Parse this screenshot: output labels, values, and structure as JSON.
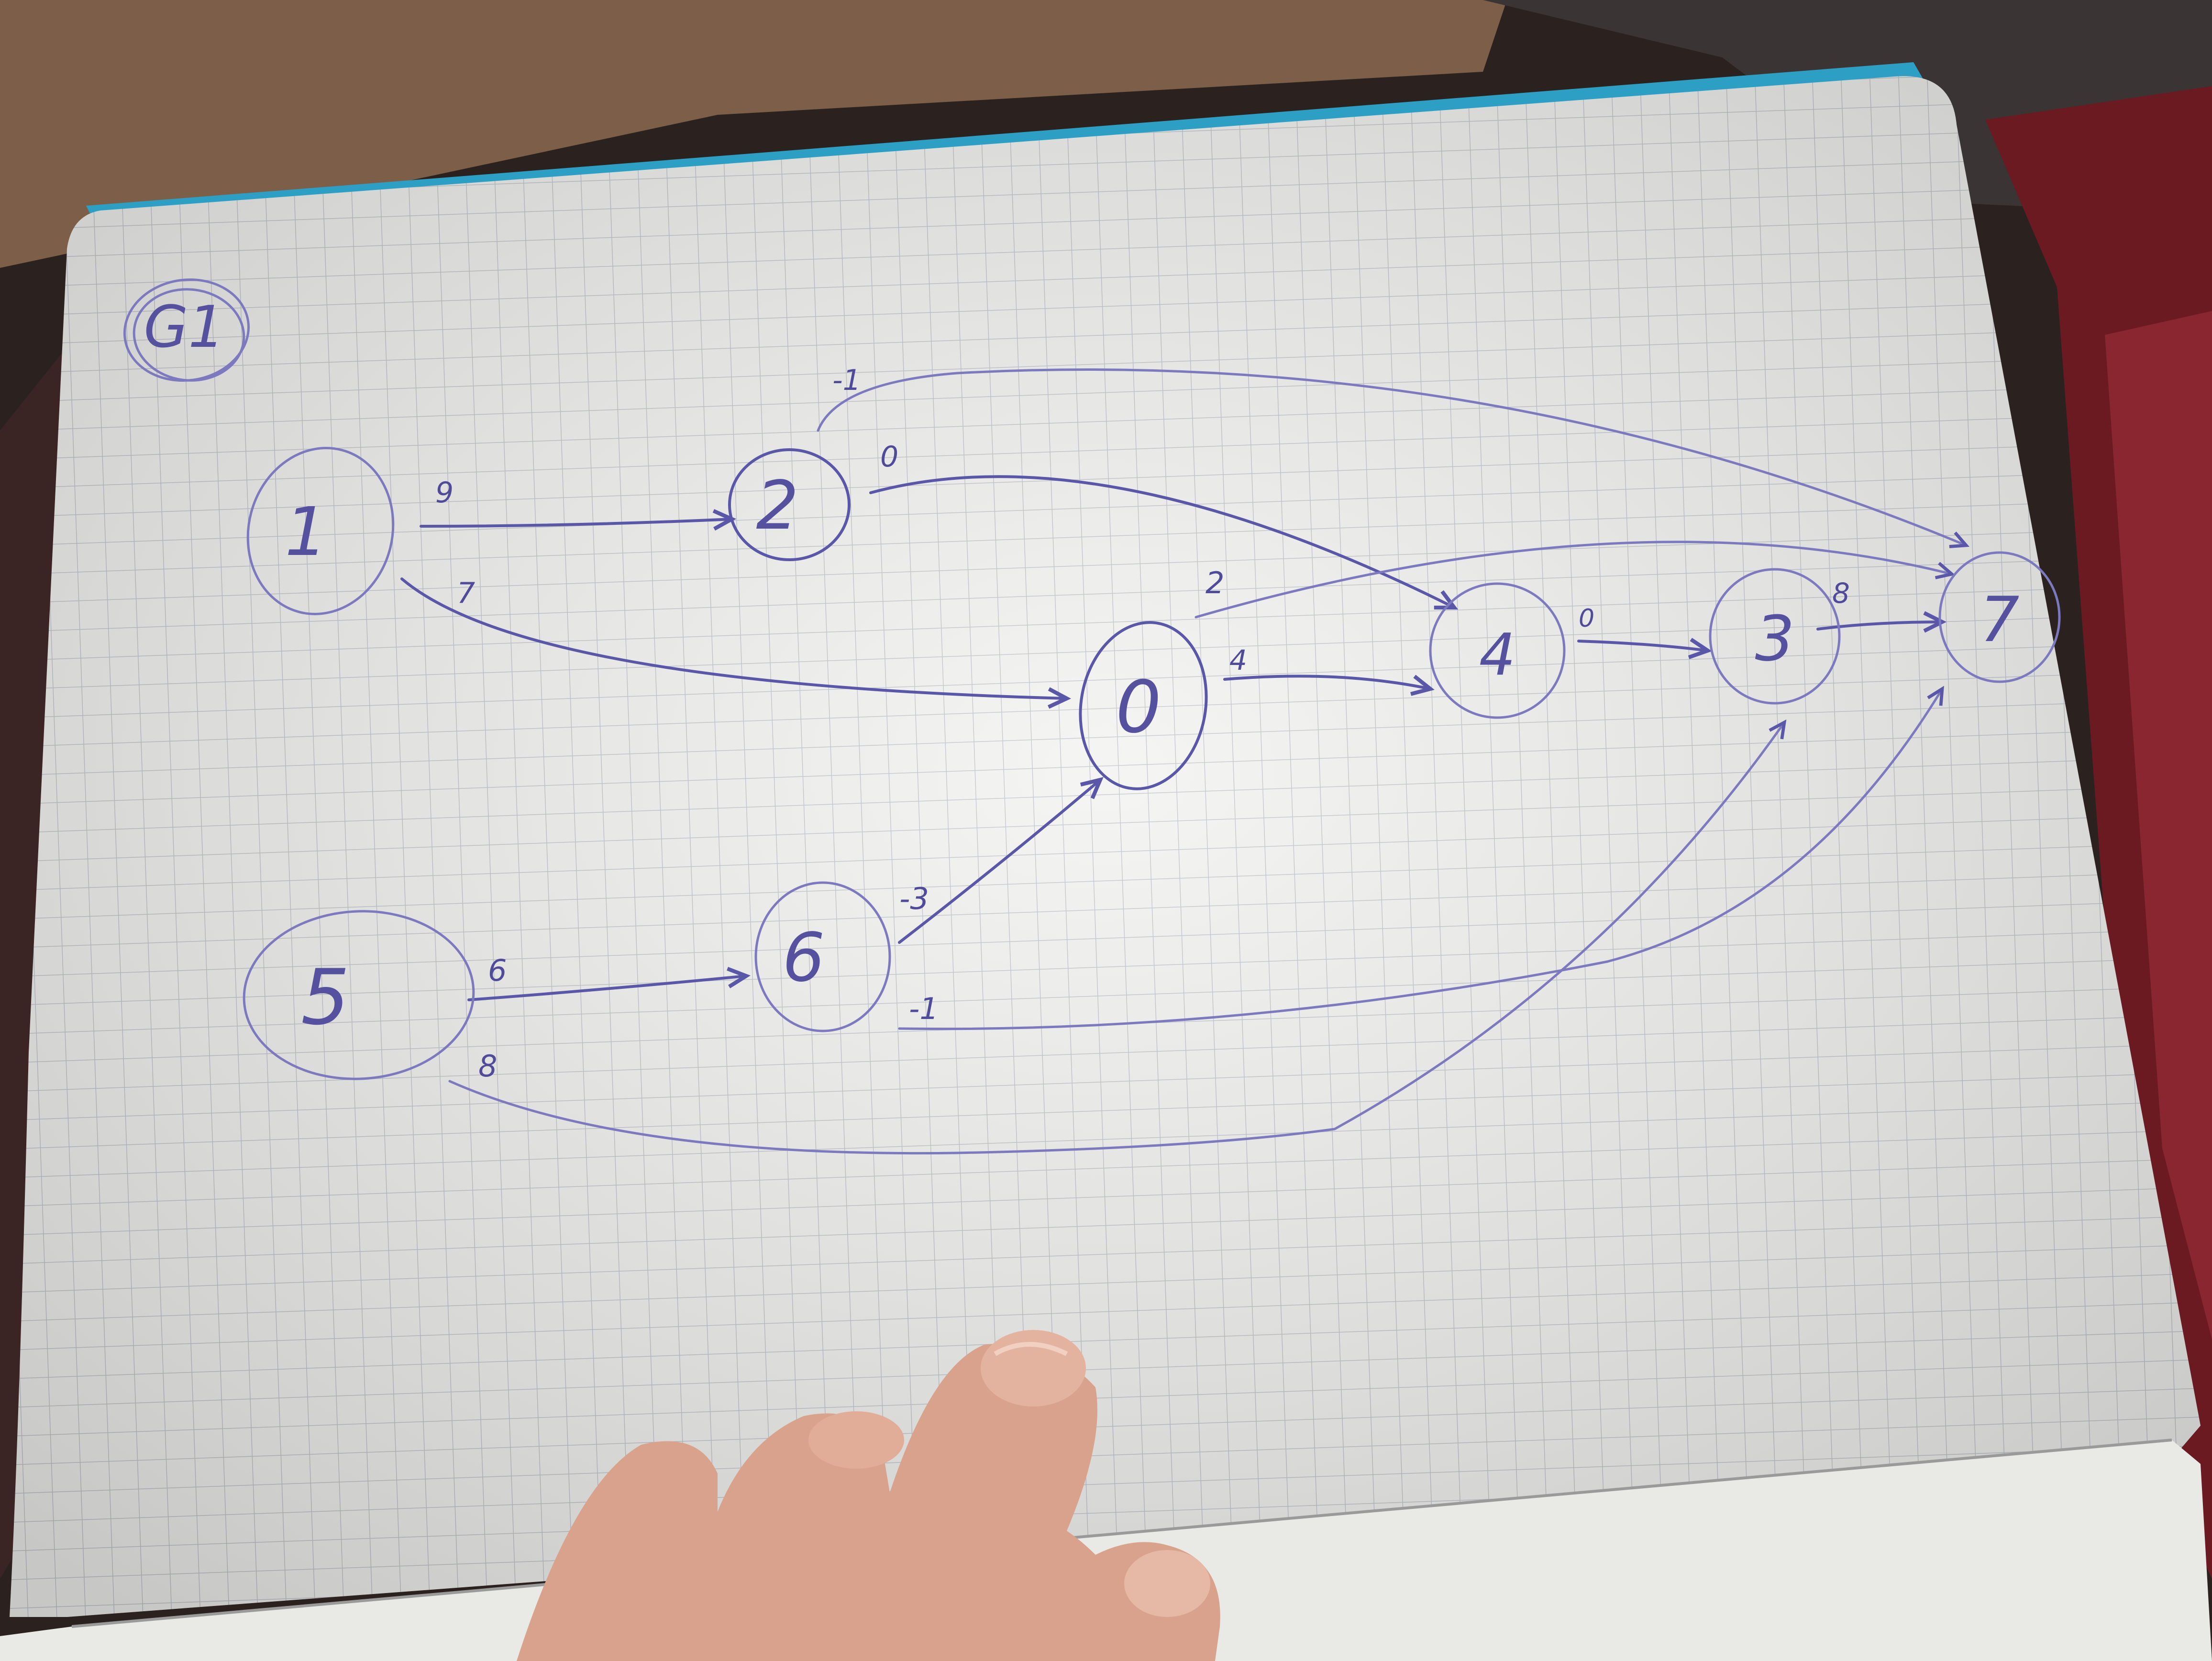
{
  "graph": {
    "title": "G1",
    "nodes": [
      {
        "id": "1",
        "label": "1"
      },
      {
        "id": "2",
        "label": "2"
      },
      {
        "id": "0",
        "label": "0"
      },
      {
        "id": "4",
        "label": "4"
      },
      {
        "id": "3",
        "label": "3"
      },
      {
        "id": "7",
        "label": "7"
      },
      {
        "id": "5",
        "label": "5"
      },
      {
        "id": "6",
        "label": "6"
      }
    ],
    "edges": [
      {
        "from": "1",
        "to": "2",
        "weight": "9"
      },
      {
        "from": "1",
        "to": "0",
        "weight": "7"
      },
      {
        "from": "2",
        "to": "7",
        "weight": "-1"
      },
      {
        "from": "2",
        "to": "4",
        "weight": "0"
      },
      {
        "from": "0",
        "to": "7",
        "weight": "2"
      },
      {
        "from": "0",
        "to": "4",
        "weight": "4"
      },
      {
        "from": "4",
        "to": "3",
        "weight": "0"
      },
      {
        "from": "3",
        "to": "7",
        "weight": "8"
      },
      {
        "from": "5",
        "to": "6",
        "weight": "6"
      },
      {
        "from": "6",
        "to": "0",
        "weight": "-3"
      },
      {
        "from": "6",
        "to": "7",
        "weight": "-1"
      },
      {
        "from": "5",
        "to": "3",
        "weight": "8"
      }
    ]
  },
  "colors": {
    "ink": "#5b57a8",
    "paper": "#f4f4f2",
    "grid": "#bfc3cc",
    "cover": "#2e9fc4"
  }
}
